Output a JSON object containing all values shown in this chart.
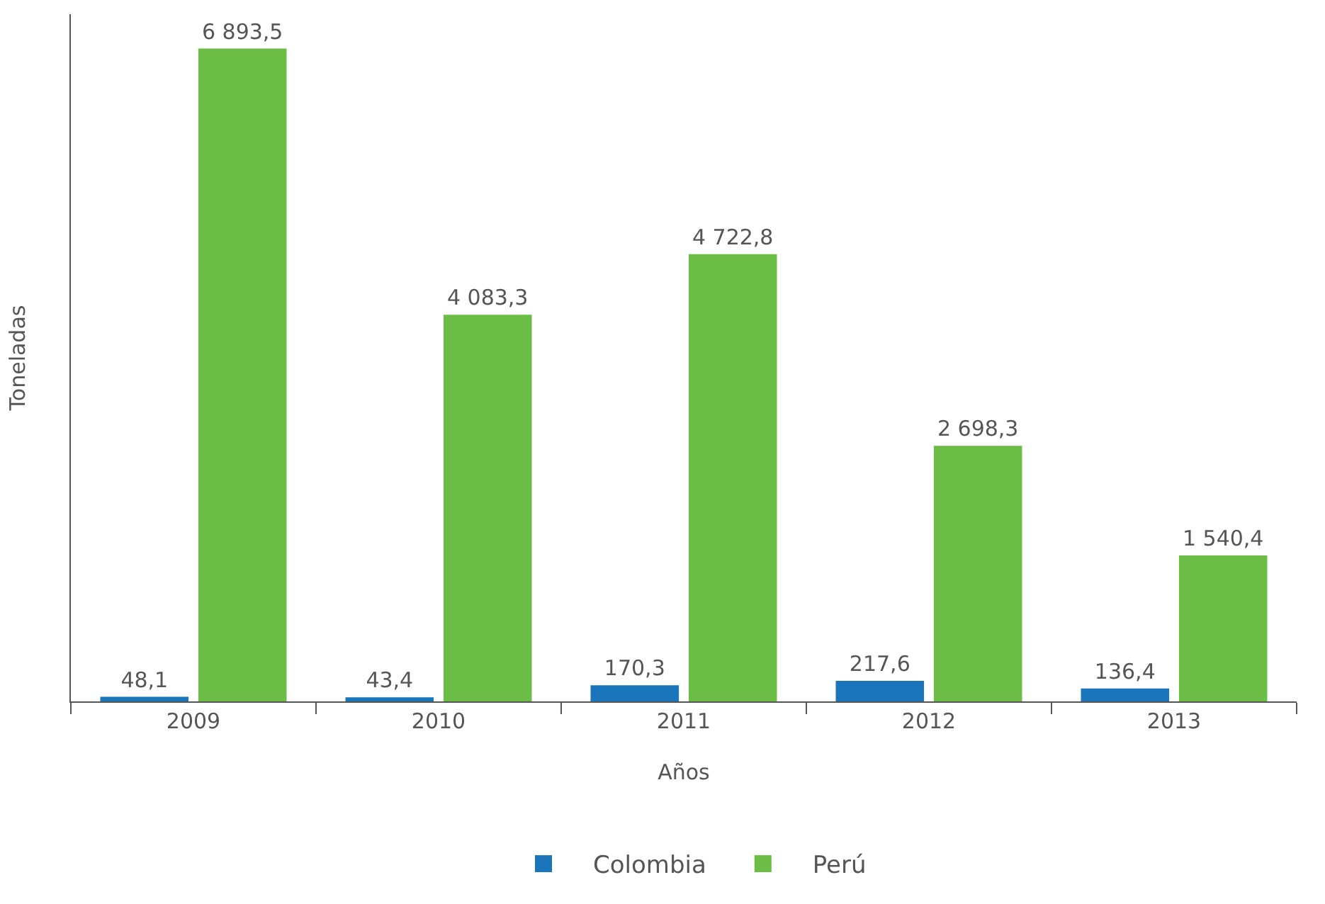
{
  "chart_data": {
    "type": "bar",
    "xlabel": "Años",
    "ylabel": "Toneladas",
    "categories": [
      "2009",
      "2010",
      "2011",
      "2012",
      "2013"
    ],
    "series": [
      {
        "name": "Colombia",
        "color": "#1b75bb",
        "values": [
          48.1,
          43.4,
          170.3,
          217.6,
          136.4
        ],
        "value_labels": [
          "48,1",
          "43,4",
          "170,3",
          "217,6",
          "136,4"
        ]
      },
      {
        "name": "Perú",
        "color": "#6cbd45",
        "values": [
          6893.5,
          4083.3,
          4722.8,
          2698.3,
          1540.4
        ],
        "value_labels": [
          "6 893,5",
          "4 083,3",
          "4 722,8",
          "2 698,3",
          "1 540,4"
        ]
      }
    ],
    "legend": "bottom",
    "tick_labels": "x"
  }
}
